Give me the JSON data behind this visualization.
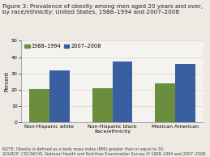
{
  "title_line1": "Figure 3: Prevalence of obesity among men aged 20 years and over,",
  "title_line2": "by race/ethnicity: United States, 1988–1994 and 2007–2008",
  "categories": [
    "Non-Hispanic white",
    "Non-Hispanic black\nRace/ethnicity",
    "Mexican American"
  ],
  "series": [
    {
      "label": "1988–1994",
      "color": "#6b8e3e",
      "values": [
        20.3,
        21.0,
        24.1
      ]
    },
    {
      "label": "2007–2008",
      "color": "#3a5fa0",
      "values": [
        32.0,
        37.5,
        36.0
      ]
    }
  ],
  "ylabel": "Percent",
  "ylim": [
    0,
    50
  ],
  "yticks": [
    0,
    10,
    20,
    30,
    40,
    50
  ],
  "note_line1": "NOTE: Obesity is defined as a body mass index (BMI) greater than or equal to 30.",
  "note_line2": "SOURCE: CDC/NCHS, National Health and Nutrition Examination Survey III 1988–1994 and 2007–2008.",
  "bar_width": 0.32,
  "background_color": "#ede9e3",
  "plot_bg_color": "#f5f3ef",
  "title_fontsize": 5.2,
  "axis_fontsize": 4.8,
  "tick_fontsize": 4.5,
  "legend_fontsize": 4.8,
  "note_fontsize": 3.5
}
